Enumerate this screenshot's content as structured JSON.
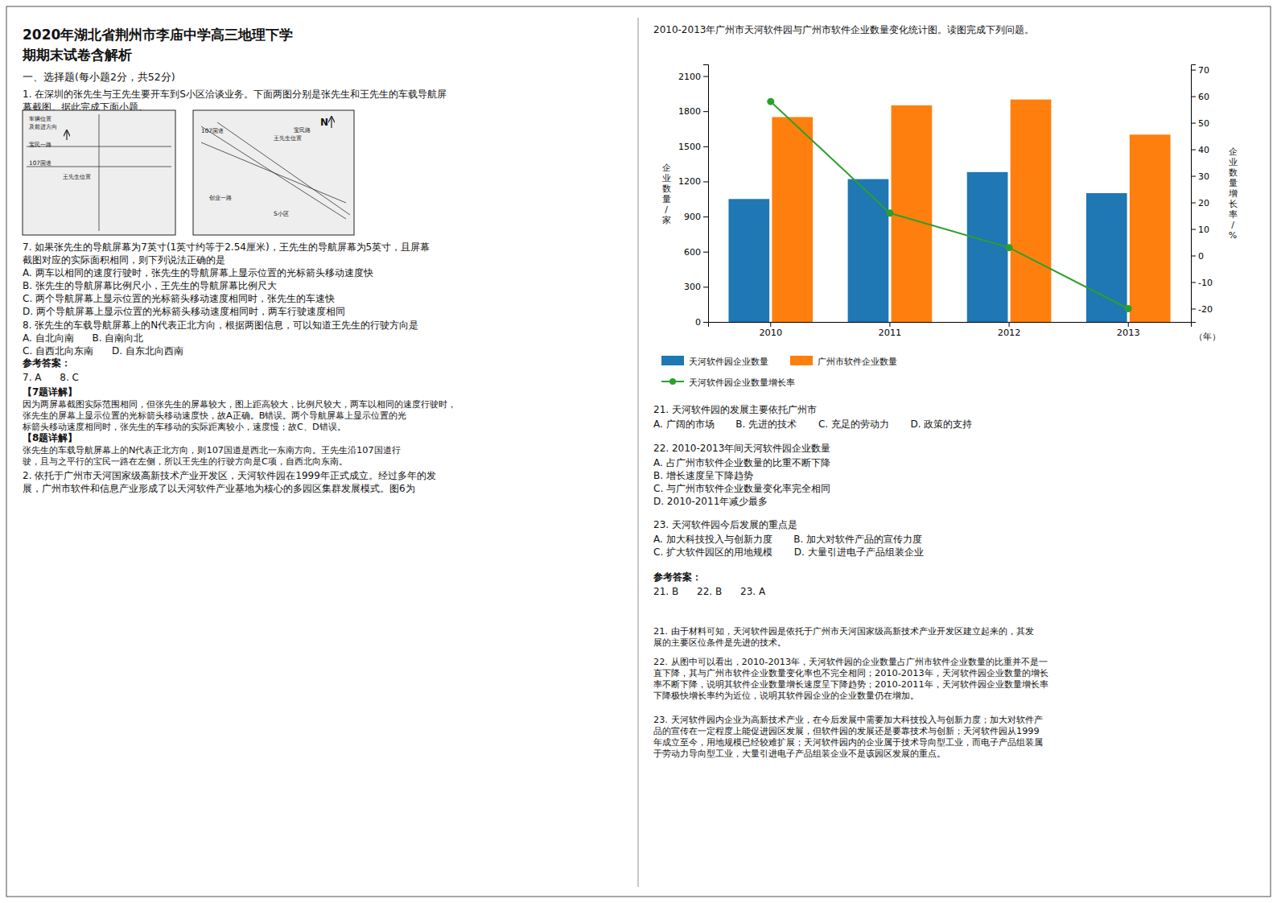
{
  "chart_data": {
    "type": "bar",
    "title": "2010-2013年广州市天河软件园与广州市软件企业数量变化统计图。读图完成下列问题。",
    "categories": [
      "2010",
      "2011",
      "2012",
      "2013"
    ],
    "series": [
      {
        "name": "天河软件园企业数量",
        "type": "bar",
        "values": [
          1050,
          1220,
          1280,
          1100
        ]
      },
      {
        "name": "广州市软件企业数量",
        "type": "bar",
        "values": [
          1750,
          1850,
          1900,
          1600
        ]
      },
      {
        "name": "天河软件园企业数量增长率",
        "type": "line",
        "axis": "y2",
        "marker": "circle",
        "line_style": "solid",
        "values": [
          58,
          16,
          3,
          -20
        ]
      }
    ],
    "xlabel": "（年）",
    "ylabel": "企业数量/家",
    "y2label": "企业数量增长率/%",
    "ylim": [
      0,
      2200
    ],
    "yticks": [
      0,
      300,
      600,
      900,
      1200,
      1500,
      1800,
      2100
    ],
    "y2lim": [
      -25,
      72
    ],
    "y2ticks": [
      -20,
      -10,
      0,
      10,
      20,
      30,
      40,
      50,
      60,
      70
    ],
    "grid": false,
    "legend": "bottom"
  },
  "page": {
    "title_line1": "2020年湖北省荆州市李庙中学高三地理下学",
    "title_line2": "期期末试卷含解析",
    "section1": "一、选择题(每小题2分，共52分)",
    "q1_line1": "1. 在深圳的张先生与王先生要开车到S小区洽谈业务。下面两图分别是张先生和王先生的车载导航屏",
    "q1_line2": "幕截图。据此完成下面小题。",
    "map1": [
      "车辆位置",
      "及前进方向",
      "宝民一路",
      "107国道",
      "王先生位置"
    ],
    "map2": [
      "N",
      "107国道",
      "宝民路",
      "王先生位置",
      "创业一路",
      "S小区"
    ],
    "q7_line1": "7. 如果张先生的导航屏幕为7英寸(1英寸约等于2.54厘米)，王先生的导航屏幕为5英寸，且屏幕",
    "q7_line2": "截图对应的实际面积相同，则下列说法正确的是",
    "q7a": "A. 两车以相同的速度行驶时，张先生的导航屏幕上显示位置的光标箭头移动速度快",
    "q7b": "B. 张先生的导航屏幕比例尺小，王先生的导航屏幕比例尺大",
    "q7c": "C. 两个导航屏幕上显示位置的光标箭头移动速度相同时，张先生的车速快",
    "q7d": "D. 两个导航屏幕上显示位置的光标箭头移动速度相同时，两车行驶速度相同",
    "q8_line1": "8. 张先生的车载导航屏幕上的N代表正北方向，根据两图信息，可以知道王先生的行驶方向是",
    "q8a": "A. 自北向南      B. 自南向北",
    "q8b": "C. 自西北向东南      D. 自东北向西南",
    "ans_label": "参考答案：",
    "ans_78": "7. A      8. C",
    "det7_title": "【7题详解】",
    "det7_l1": "因为两屏幕截图实际范围相同，但张先生的屏幕较大，图上距高较大，比例尺较大，两车以相同的速度行驶时，",
    "det7_l2": "张先生的屏幕上显示位置的光标箭头移动速度快，故A正确。B错误。两个导航屏幕上显示位置的光",
    "det7_l3": "标箭头移动速度相同时，张先生的车移动的实际距离较小，速度慢；故C、D错误。",
    "det8_title": "【8题详解】",
    "det8_l1": "张先生的车载导航屏幕上的N代表正北方向，则107国道是西北一东南方向。王先生沿107国道行",
    "det8_l2": "驶，且与之平行的宝民一路在左侧，所以王先生的行驶方向是C项，自西北向东南。",
    "q2_l1": "2. 依托于广州市天河国家级高新技术产业开发区，天河软件园在1999年正式成立。经过多年的发",
    "q2_l2": "展，广州市软件和信息产业形成了以天河软件产业基地为核心的多园区集群发展模式。图6为",
    "q21": "21. 天河软件园的发展主要依托广州市",
    "q21_opts": "A. 广阔的市场       B. 先进的技术       C. 充足的劳动力       D. 政策的支持",
    "q22": "22. 2010-2013年间天河软件园企业数量",
    "q22a": "A. 占广州市软件企业数量的比重不断下降",
    "q22b": "B. 增长速度呈下降趋势",
    "q22c": "C. 与广州市软件企业数量变化率完全相同",
    "q22d": "D. 2010-2011年减少最多",
    "q23": "23. 天河软件园今后发展的重点是",
    "q23a": "A. 加大科技投入与创新力度       B. 加大对软件产品的宣传力度",
    "q23b": "C. 扩大软件园区的用地规模       D. 大量引进电子产品组装企业",
    "ans_label_r": "参考答案：",
    "ans_2123": "21. B      22. B      23. A",
    "ra21_l1": "21. 由于材料可知，天河软件园是依托于广州市天河国家级高新技术产业开发区建立起来的，其发",
    "ra21_l2": "展的主要区位条件是先进的技术。",
    "ra22_l1": "22. 从图中可以看出，2010-2013年，天河软件园的企业数量占广州市软件企业数量的比重并不是一",
    "ra22_l2": "直下降，其与广州市软件企业数量变化率也不完全相同；2010-2013年，天河软件园企业数量的增长",
    "ra22_l3": "率不断下降，说明其软件企业数量增长速度呈下降趋势；2010-2011年，天河软件园企业数量增长率",
    "ra22_l4": "下降极快增长率约为近位，说明其软件园企业的企业数量仍在增加。",
    "ra23_l1": "23. 天河软件园内企业为高新技术产业，在今后发展中需要加大科技投入与创新力度；加大对软件产",
    "ra23_l2": "品的宣传在一定程度上能促进园区发展，但软件园的发展还是要靠技术与创新；天河软件园从1999",
    "ra23_l3": "年成立至今，用地规模已经较难扩展；天河软件园内的企业属于技术导向型工业，而电子产品组装属",
    "ra23_l4": "于劳动力导向型工业，大量引进电子产品组装企业不是该园区发展的重点。"
  }
}
